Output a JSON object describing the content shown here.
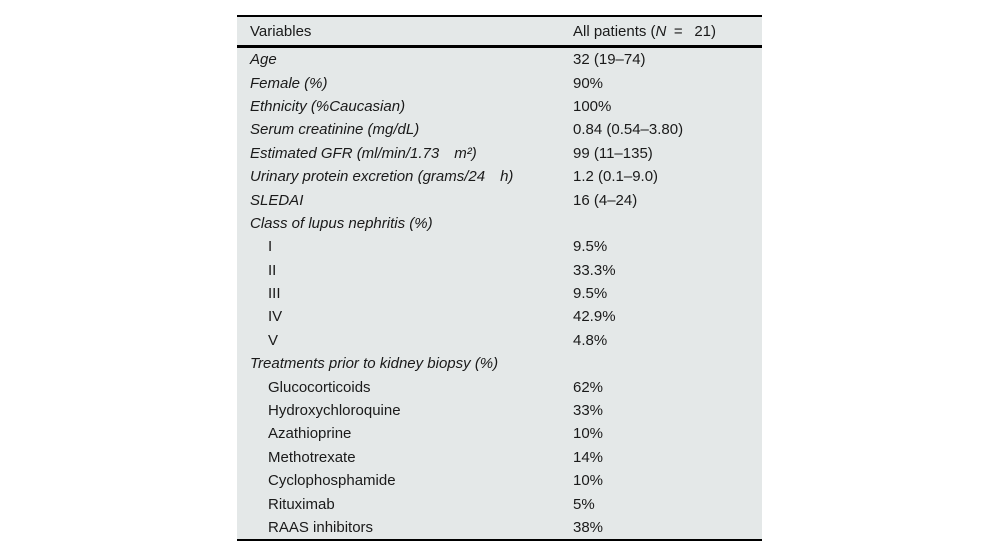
{
  "colors": {
    "table_background": "#e4e8e8",
    "rule_color": "#000000",
    "text_color": "#1a1a1a",
    "page_background": "#ffffff"
  },
  "table": {
    "header": {
      "col1": "Variables",
      "col2_prefix": "All patients (",
      "col2_n": "N",
      "col2_suffix": " =  21)"
    },
    "rows": [
      {
        "label": "Age",
        "value": "32 (19–74)",
        "italic": true,
        "indent": false
      },
      {
        "label": "Female (%)",
        "value": "90%",
        "italic": true,
        "indent": false
      },
      {
        "label": "Ethnicity (%Caucasian)",
        "value": "100%",
        "italic": true,
        "indent": false
      },
      {
        "label": "Serum creatinine (mg/dL)",
        "value": "0.84 (0.54–3.80)",
        "italic": true,
        "indent": false
      },
      {
        "label": "Estimated GFR (ml/min/1.73 m²)",
        "value": "99 (11–135)",
        "italic": true,
        "indent": false
      },
      {
        "label": "Urinary protein excretion (grams/24 h)",
        "value": "1.2 (0.1–9.0)",
        "italic": true,
        "indent": false
      },
      {
        "label": "SLEDAI",
        "value": "16 (4–24)",
        "italic": true,
        "indent": false
      },
      {
        "label": "Class of lupus nephritis (%)",
        "value": "",
        "italic": true,
        "indent": false
      },
      {
        "label": "I",
        "value": "9.5%",
        "italic": false,
        "indent": true
      },
      {
        "label": "II",
        "value": "33.3%",
        "italic": false,
        "indent": true
      },
      {
        "label": "III",
        "value": "9.5%",
        "italic": false,
        "indent": true
      },
      {
        "label": "IV",
        "value": "42.9%",
        "italic": false,
        "indent": true
      },
      {
        "label": "V",
        "value": "4.8%",
        "italic": false,
        "indent": true
      },
      {
        "label": "Treatments prior to kidney biopsy (%)",
        "value": "",
        "italic": true,
        "indent": false
      },
      {
        "label": "Glucocorticoids",
        "value": "62%",
        "italic": false,
        "indent": true
      },
      {
        "label": "Hydroxychloroquine",
        "value": "33%",
        "italic": false,
        "indent": true
      },
      {
        "label": "Azathioprine",
        "value": "10%",
        "italic": false,
        "indent": true
      },
      {
        "label": "Methotrexate",
        "value": "14%",
        "italic": false,
        "indent": true
      },
      {
        "label": "Cyclophosphamide",
        "value": "10%",
        "italic": false,
        "indent": true
      },
      {
        "label": "Rituximab",
        "value": "5%",
        "italic": false,
        "indent": true
      },
      {
        "label": "RAAS inhibitors",
        "value": "38%",
        "italic": false,
        "indent": true
      }
    ]
  },
  "chart_data": {
    "type": "table",
    "title": "",
    "columns": [
      "Variables",
      "All patients (N = 21)"
    ],
    "rows": [
      [
        "Age",
        "32 (19–74)"
      ],
      [
        "Female (%)",
        "90%"
      ],
      [
        "Ethnicity (%Caucasian)",
        "100%"
      ],
      [
        "Serum creatinine (mg/dL)",
        "0.84 (0.54–3.80)"
      ],
      [
        "Estimated GFR (ml/min/1.73 m²)",
        "99 (11–135)"
      ],
      [
        "Urinary protein excretion (grams/24 h)",
        "1.2 (0.1–9.0)"
      ],
      [
        "SLEDAI",
        "16 (4–24)"
      ],
      [
        "Class of lupus nephritis (%)",
        ""
      ],
      [
        "I",
        "9.5%"
      ],
      [
        "II",
        "33.3%"
      ],
      [
        "III",
        "9.5%"
      ],
      [
        "IV",
        "42.9%"
      ],
      [
        "V",
        "4.8%"
      ],
      [
        "Treatments prior to kidney biopsy (%)",
        ""
      ],
      [
        "Glucocorticoids",
        "62%"
      ],
      [
        "Hydroxychloroquine",
        "33%"
      ],
      [
        "Azathioprine",
        "10%"
      ],
      [
        "Methotrexate",
        "14%"
      ],
      [
        "Cyclophosphamide",
        "10%"
      ],
      [
        "Rituximab",
        "5%"
      ],
      [
        "RAAS inhibitors",
        "38%"
      ]
    ]
  }
}
